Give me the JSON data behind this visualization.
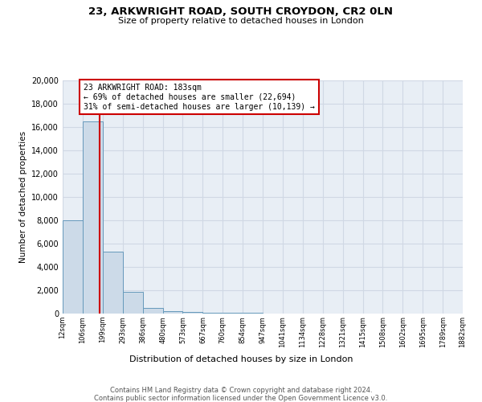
{
  "title1": "23, ARKWRIGHT ROAD, SOUTH CROYDON, CR2 0LN",
  "title2": "Size of property relative to detached houses in London",
  "xlabel": "Distribution of detached houses by size in London",
  "ylabel": "Number of detached properties",
  "bins": [
    12,
    106,
    199,
    293,
    386,
    480,
    573,
    667,
    760,
    854,
    947,
    1041,
    1134,
    1228,
    1321,
    1415,
    1508,
    1602,
    1695,
    1789,
    1882
  ],
  "counts": [
    8000,
    16500,
    5300,
    1850,
    500,
    200,
    150,
    100,
    50,
    50,
    0,
    0,
    0,
    0,
    0,
    0,
    0,
    0,
    0,
    0
  ],
  "property_size": 183,
  "bar_color": "#ccdae8",
  "bar_edge_color": "#6699bb",
  "vline_color": "#cc0000",
  "annotation_line1": "23 ARKWRIGHT ROAD: 183sqm",
  "annotation_line2": "← 69% of detached houses are smaller (22,694)",
  "annotation_line3": "31% of semi-detached houses are larger (10,139) →",
  "annotation_border_color": "#cc0000",
  "footer1": "Contains HM Land Registry data © Crown copyright and database right 2024.",
  "footer2": "Contains public sector information licensed under the Open Government Licence v3.0.",
  "bg_color": "#e8eef5",
  "grid_color": "#d0d8e4",
  "ylim": [
    0,
    20000
  ],
  "yticks": [
    0,
    2000,
    4000,
    6000,
    8000,
    10000,
    12000,
    14000,
    16000,
    18000,
    20000
  ]
}
